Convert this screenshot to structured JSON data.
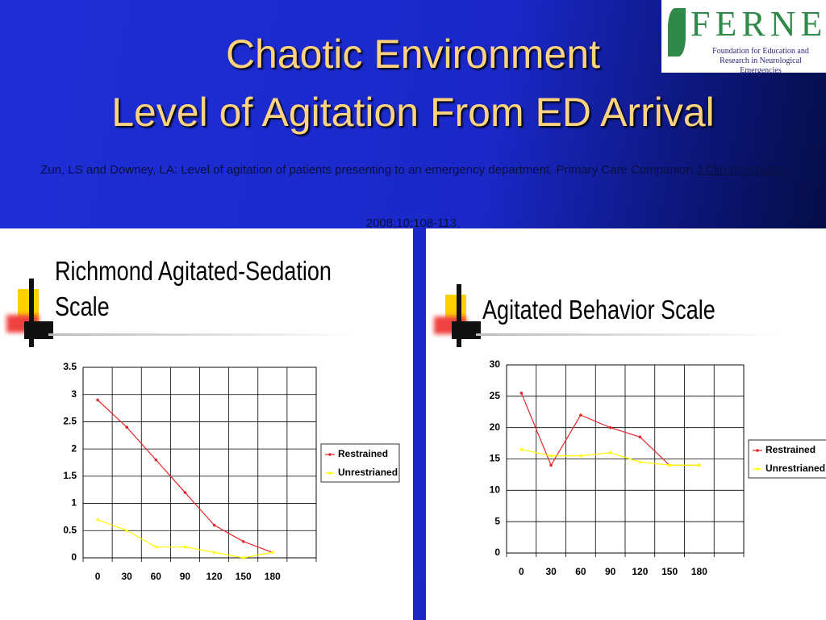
{
  "header": {
    "title_line1": "Chaotic Environment",
    "title_line2": "Level of Agitation From ED Arrival",
    "citation_text": "Zun, LS and Downey, LA: Level of agitation of patients presenting to an emergency department. Primary Care Companion ",
    "citation_journal": "J Clin Psychiatry",
    "citation_details": " 2008;10:108-113."
  },
  "logo": {
    "name": "FERNE",
    "subtitle": "Foundation for Education and Research in Neurological Emergencies"
  },
  "chart_data": [
    {
      "type": "line",
      "title": "Richmond Agitated-Sedation Scale",
      "categories": [
        "0",
        "30",
        "60",
        "90",
        "120",
        "150",
        "180",
        null
      ],
      "series": [
        {
          "name": "Restrained",
          "color": "#e8262a",
          "values": [
            2.9,
            2.4,
            1.8,
            1.2,
            0.6,
            0.3,
            0.1,
            null
          ]
        },
        {
          "name": "Unrestrianed",
          "color": "#ffff00",
          "values": [
            0.7,
            0.5,
            0.2,
            0.2,
            0.1,
            0,
            0.1,
            null
          ]
        }
      ],
      "ylim": [
        0,
        3.5
      ],
      "yticks": [
        0,
        0.5,
        1,
        1.5,
        2,
        2.5,
        3,
        3.5
      ],
      "grid": true,
      "legend": "right"
    },
    {
      "type": "line",
      "title": "Agitated Behavior Scale",
      "categories": [
        "0",
        "30",
        "60",
        "90",
        "120",
        "150",
        "180",
        null
      ],
      "series": [
        {
          "name": "Restrained",
          "color": "#e8262a",
          "values": [
            25.5,
            14,
            22,
            20,
            18.5,
            14,
            14,
            null
          ]
        },
        {
          "name": "Unrestrianed",
          "color": "#ffff00",
          "values": [
            16.5,
            15.5,
            15.5,
            16,
            14.5,
            14,
            14,
            null
          ]
        }
      ],
      "ylim": [
        0,
        30
      ],
      "yticks": [
        0,
        5,
        10,
        15,
        20,
        25,
        30
      ],
      "grid": true,
      "legend": "right"
    }
  ]
}
